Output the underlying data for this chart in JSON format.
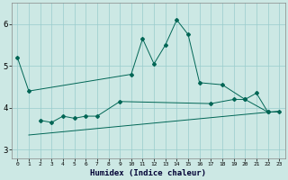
{
  "xlabel": "Humidex (Indice chaleur)",
  "background_color": "#cce8e4",
  "grid_color": "#99cccc",
  "line_color": "#006655",
  "x_all": [
    0,
    1,
    2,
    3,
    4,
    5,
    6,
    7,
    8,
    9,
    10,
    11,
    12,
    13,
    14,
    15,
    16,
    17,
    18,
    19,
    20,
    21,
    22,
    23
  ],
  "line1_x": [
    0,
    1,
    10,
    11,
    12,
    13,
    14,
    15,
    16,
    18,
    20,
    22,
    23
  ],
  "line1_y": [
    5.2,
    4.4,
    4.8,
    5.65,
    5.05,
    5.5,
    6.1,
    5.75,
    4.6,
    4.55,
    4.2,
    3.9,
    3.9
  ],
  "line2_x": [
    2,
    3,
    4,
    5,
    6,
    7,
    9,
    17,
    19,
    20,
    21,
    22
  ],
  "line2_y": [
    3.7,
    3.65,
    3.8,
    3.75,
    3.8,
    3.8,
    4.15,
    4.1,
    4.2,
    4.2,
    4.35,
    3.9
  ],
  "line3_x": [
    1,
    23
  ],
  "line3_y": [
    3.35,
    3.92
  ],
  "ylim": [
    2.8,
    6.5
  ],
  "xlim": [
    -0.5,
    23.5
  ],
  "yticks": [
    3,
    4,
    5,
    6
  ],
  "xticks": [
    0,
    1,
    2,
    3,
    4,
    5,
    6,
    7,
    8,
    9,
    10,
    11,
    12,
    13,
    14,
    15,
    16,
    17,
    18,
    19,
    20,
    21,
    22,
    23
  ],
  "figsize": [
    3.2,
    2.0
  ],
  "dpi": 100
}
